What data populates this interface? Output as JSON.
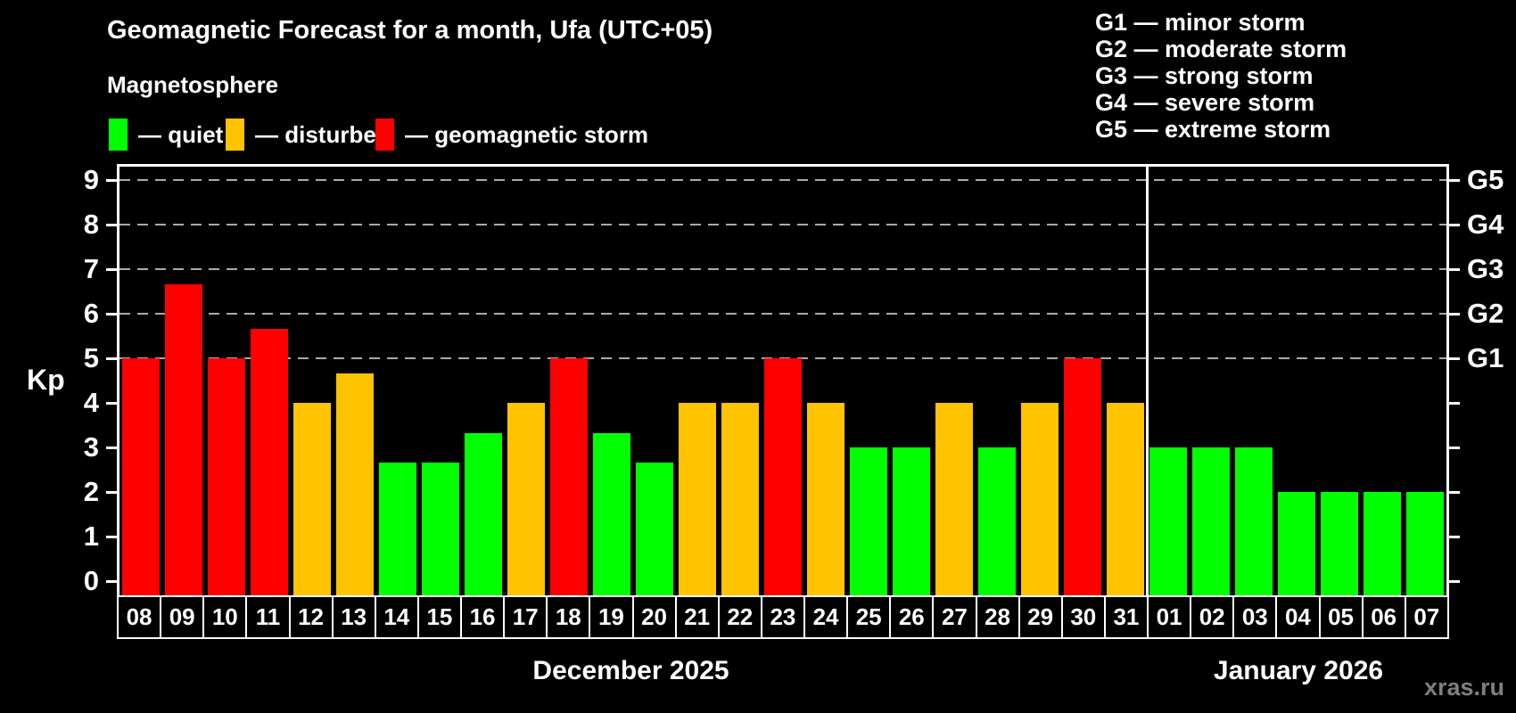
{
  "header": {
    "title": "Geomagnetic Forecast for a month, Ufa (UTC+05)"
  },
  "magnetosphere_legend": {
    "title": "Magnetosphere",
    "items": [
      {
        "status": "quiet",
        "swatch_color": "#00ff00",
        "label": "— quiet"
      },
      {
        "status": "disturbed",
        "swatch_color": "#ffc300",
        "label": "— disturbed"
      },
      {
        "status": "storm",
        "swatch_color": "#ff0000",
        "label": "— geomagnetic storm"
      }
    ]
  },
  "storm_scale_legend": {
    "lines": [
      "G1 — minor storm",
      "G2 — moderate storm",
      "G3 — strong storm",
      "G4 — severe storm",
      "G5 — extreme storm"
    ]
  },
  "watermark": "xras.ru",
  "chart_data": {
    "type": "bar",
    "title": "Geomagnetic Forecast for a month, Ufa (UTC+05)",
    "xlabel": "",
    "ylabel": "Kp",
    "ylim": [
      0,
      9
    ],
    "yticks": [
      0,
      1,
      2,
      3,
      4,
      5,
      6,
      7,
      8,
      9
    ],
    "grid_kp_levels": [
      5,
      6,
      7,
      8,
      9
    ],
    "grid_on": true,
    "legend_position": "top-left",
    "background": "#000000",
    "right_axis_labels": [
      {
        "label": "G1",
        "kp": 5
      },
      {
        "label": "G2",
        "kp": 6
      },
      {
        "label": "G3",
        "kp": 7
      },
      {
        "label": "G4",
        "kp": 8
      },
      {
        "label": "G5",
        "kp": 9
      }
    ],
    "categories": [
      "08",
      "09",
      "10",
      "11",
      "12",
      "13",
      "14",
      "15",
      "16",
      "17",
      "18",
      "19",
      "20",
      "21",
      "22",
      "23",
      "24",
      "25",
      "26",
      "27",
      "28",
      "29",
      "30",
      "31",
      "01",
      "02",
      "03",
      "04",
      "05",
      "06",
      "07"
    ],
    "values": [
      5,
      6.67,
      5,
      5.67,
      4,
      4.67,
      2.67,
      2.67,
      3.33,
      4,
      5,
      3.33,
      2.67,
      4,
      4,
      5,
      4,
      3,
      3,
      4,
      3,
      4,
      5,
      4,
      3,
      3,
      3,
      2,
      2,
      2,
      2
    ],
    "statuses": [
      "storm",
      "storm",
      "storm",
      "storm",
      "disturbed",
      "disturbed",
      "quiet",
      "quiet",
      "quiet",
      "disturbed",
      "storm",
      "quiet",
      "quiet",
      "disturbed",
      "disturbed",
      "storm",
      "disturbed",
      "quiet",
      "quiet",
      "disturbed",
      "quiet",
      "disturbed",
      "storm",
      "disturbed",
      "quiet",
      "quiet",
      "quiet",
      "quiet",
      "quiet",
      "quiet",
      "quiet"
    ],
    "colors": {
      "quiet": "#00ff00",
      "disturbed": "#ffc300",
      "storm": "#ff0000"
    },
    "sections": [
      {
        "label": "December 2025",
        "days": 24
      },
      {
        "label": "January 2026",
        "days": 7
      }
    ]
  }
}
